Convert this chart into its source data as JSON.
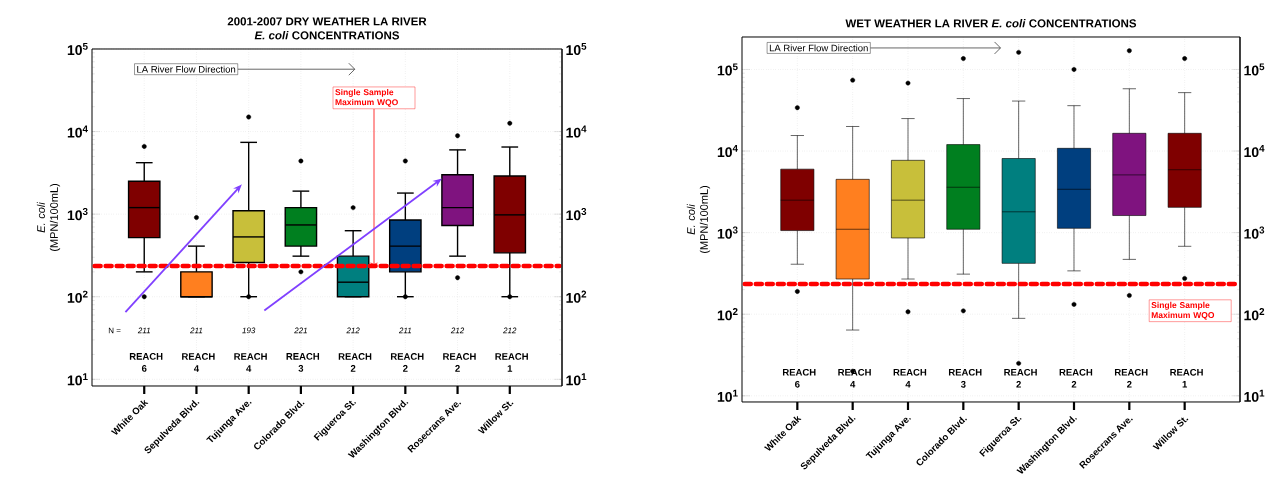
{
  "chart_data": [
    {
      "type": "box",
      "title": "2001-2007 DRY WEATHER LA RIVER",
      "subtitle": "*E. coli* CONCENTRATIONS",
      "ylabel": "*E. coli* (MPN/100mL)",
      "categories": [
        "White Oak",
        "Sepulveda Blvd.",
        "Tujunga Ave.",
        "Colorado Blvd.",
        "Figueroa St.",
        "Washington Blvd.",
        "Rosecrans Ave.",
        "Willow St."
      ],
      "colors": [
        "#7f0000",
        "#ff7f1f",
        "#c8bf3a",
        "#007f1f",
        "#007f7f",
        "#003f7f",
        "#7f137f",
        "#7f0000"
      ],
      "boxes": [
        {
          "low": 200,
          "q1": 520,
          "median": 1200,
          "q3": 2500,
          "high": 4200,
          "outliers": [
            6600,
            100
          ]
        },
        {
          "low": 100,
          "q1": 100,
          "median": 100,
          "q3": 200,
          "high": 410,
          "outliers": [
            910
          ]
        },
        {
          "low": 100,
          "q1": 260,
          "median": 530,
          "q3": 1100,
          "high": 7400,
          "outliers": [
            15000,
            100
          ]
        },
        {
          "low": 310,
          "q1": 410,
          "median": 740,
          "q3": 1200,
          "high": 1900,
          "outliers": [
            4400,
            200
          ]
        },
        {
          "low": 100,
          "q1": 100,
          "median": 150,
          "q3": 310,
          "high": 630,
          "outliers": [
            1200
          ]
        },
        {
          "low": 100,
          "q1": 200,
          "median": 410,
          "q3": 850,
          "high": 1800,
          "outliers": [
            4400,
            100
          ]
        },
        {
          "low": 310,
          "q1": 730,
          "median": 1200,
          "q3": 3000,
          "high": 6000,
          "outliers": [
            8900,
            170
          ]
        },
        {
          "low": 100,
          "q1": 340,
          "median": 980,
          "q3": 2900,
          "high": 6500,
          "outliers": [
            12600,
            100
          ]
        }
      ],
      "log": true,
      "grid": true,
      "ylim": [
        8.3,
        100000
      ],
      "yticks": [
        {
          "value": 10,
          "label": "10$^{1}$"
        },
        {
          "value": 100,
          "label": "10$^{2}$"
        },
        {
          "value": 1000,
          "label": "10$^{3}$"
        },
        {
          "value": 10000,
          "label": "10$^{4}$"
        },
        {
          "value": 100000,
          "label": "10$^{5}$"
        }
      ],
      "ref_lines": [
        {
          "axis": "y",
          "value": 235,
          "label": "Single Sample Maximum WQO",
          "color": "#ff0000",
          "line_style": "dashed"
        }
      ],
      "annotations": [
        "N =",
        "211",
        "211",
        "193",
        "221",
        "212",
        "211",
        "212",
        "212",
        "REACH 6",
        "REACH 4",
        "REACH 4",
        "REACH 3",
        "REACH 2",
        "REACH 2",
        "REACH 2",
        "REACH 1",
        "LA River Flow Direction"
      ]
    },
    {
      "type": "box",
      "title": "WET WEATHER LA RIVER *E. coli* CONCENTRATIONS",
      "ylabel": "*E. coli* (MPN/100mL)",
      "categories": [
        "White Oak",
        "Sepulveda Blvd.",
        "Tujunga Ave.",
        "Colorado Blvd.",
        "Figueroa St.",
        "Washington Blvd.",
        "Rosecrans Ave.",
        "Willow St."
      ],
      "colors": [
        "#7f0000",
        "#ff7f1f",
        "#c8bf3a",
        "#007f1f",
        "#007f7f",
        "#003f7f",
        "#7f137f",
        "#7f0000"
      ],
      "boxes": [
        {
          "low": 410,
          "q1": 1060,
          "median": 2500,
          "q3": 6000,
          "high": 15500,
          "outliers": [
            34000,
            190
          ]
        },
        {
          "low": 64,
          "q1": 270,
          "median": 1100,
          "q3": 4500,
          "high": 20000,
          "outliers": [
            74000,
            20
          ]
        },
        {
          "low": 270,
          "q1": 860,
          "median": 2500,
          "q3": 7700,
          "high": 25000,
          "outliers": [
            68000,
            107
          ]
        },
        {
          "low": 310,
          "q1": 1100,
          "median": 3600,
          "q3": 12000,
          "high": 44000,
          "outliers": [
            136000,
            110
          ]
        },
        {
          "low": 89,
          "q1": 420,
          "median": 1800,
          "q3": 8100,
          "high": 41000,
          "outliers": [
            162000,
            25
          ]
        },
        {
          "low": 340,
          "q1": 1130,
          "median": 3400,
          "q3": 10800,
          "high": 36000,
          "outliers": [
            100000,
            132
          ]
        },
        {
          "low": 470,
          "q1": 1620,
          "median": 5100,
          "q3": 16500,
          "high": 58000,
          "outliers": [
            170000,
            170
          ]
        },
        {
          "low": 680,
          "q1": 2040,
          "median": 5900,
          "q3": 16500,
          "high": 52000,
          "outliers": [
            136000,
            275
          ]
        }
      ],
      "log": true,
      "grid": true,
      "ylim": [
        8.4,
        250000
      ],
      "yticks": [
        {
          "value": 10,
          "label": "10$^{1}$"
        },
        {
          "value": 100,
          "label": "10$^{2}$"
        },
        {
          "value": 1000,
          "label": "10$^{3}$"
        },
        {
          "value": 10000,
          "label": "10$^{4}$"
        },
        {
          "value": 100000,
          "label": "10$^{5}$"
        }
      ],
      "ref_lines": [
        {
          "axis": "y",
          "value": 235,
          "label": "Single Sample Maximum WQO",
          "color": "#ff0000",
          "line_style": "dashed"
        }
      ],
      "annotations": [
        "REACH 6",
        "REACH 4",
        "REACH 4",
        "REACH 3",
        "REACH 2",
        "REACH 2",
        "REACH 2",
        "REACH 1",
        "LA River Flow Direction"
      ]
    }
  ]
}
